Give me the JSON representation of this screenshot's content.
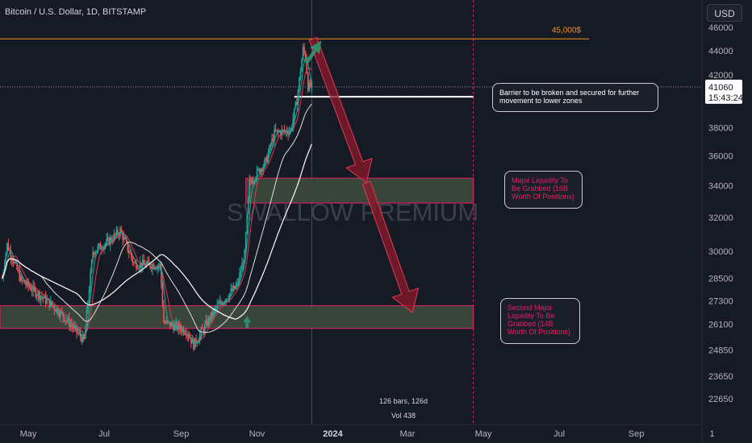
{
  "header": {
    "symbol_title": "Bitcoin / U.S. Dollar, 1D, BITSTAMP",
    "currency_button": "USD"
  },
  "watermark": "SWALLOW PREMIUM",
  "price_label": {
    "price": "41060",
    "countdown": "15:43:24"
  },
  "annotations": {
    "target_level": "45,000$",
    "barrier": "Barrier to be broken and secured for further movement to lower zones",
    "major_liquidity": "Major Liquidity To Be Grabbed (16B Worth Of Positions)",
    "second_liquidity": "Second Major Liquidity To Be Grabbed (14B Worth Of Positions)"
  },
  "stats": {
    "bars": "126 bars, 126d",
    "vol": "Vol 438"
  },
  "colors": {
    "background": "#161a25",
    "up_candle": "#26a69a",
    "down_candle": "#ef5350",
    "orange_line": "#f7931a",
    "zone_border": "#e91e63",
    "zone_fill": "#3d4a3d",
    "arrow_red": "#8b1a2b",
    "arrow_green": "#2e8b6e",
    "ma_fast": "#26a69a",
    "ma_mid": "#e53950",
    "ma_slow": "#ffffff"
  },
  "chart_data": {
    "type": "candlestick",
    "title": "Bitcoin / U.S. Dollar, 1D, BITSTAMP",
    "y_scale": "log",
    "ylim": [
      21800,
      47500
    ],
    "y_ticks": [
      46000,
      44000,
      42000,
      38000,
      36000,
      34000,
      32000,
      30000,
      28500,
      27300,
      26100,
      24850,
      23650,
      22650
    ],
    "x_ticks": [
      "May",
      "Jul",
      "Sep",
      "Nov",
      "2024",
      "Mar",
      "May",
      "Jul",
      "Sep",
      "1"
    ],
    "current_price": 41060,
    "levels": {
      "target": 45000,
      "barrier": 40300,
      "major_liquidity_zone": [
        32900,
        34500
      ],
      "second_liquidity_zone": [
        25900,
        27050
      ]
    },
    "projected_path": [
      45000,
      34200,
      26700
    ],
    "candles_sampled": [
      {
        "d": "2023-04-14",
        "o": 30400,
        "c": 30500,
        "h": 31000,
        "l": 29800
      },
      {
        "d": "2023-05-01",
        "o": 29200,
        "c": 28000,
        "h": 29300,
        "l": 27700
      },
      {
        "d": "2023-05-15",
        "o": 27000,
        "c": 27200,
        "h": 27700,
        "l": 26600
      },
      {
        "d": "2023-06-15",
        "o": 25500,
        "c": 25600,
        "h": 26000,
        "l": 24900
      },
      {
        "d": "2023-06-25",
        "o": 30500,
        "c": 30400,
        "h": 31300,
        "l": 30200
      },
      {
        "d": "2023-07-14",
        "o": 31000,
        "c": 30300,
        "h": 31800,
        "l": 30100
      },
      {
        "d": "2023-08-15",
        "o": 29300,
        "c": 29000,
        "h": 29500,
        "l": 28800
      },
      {
        "d": "2023-08-18",
        "o": 26600,
        "c": 26100,
        "h": 26800,
        "l": 25800
      },
      {
        "d": "2023-09-11",
        "o": 25800,
        "c": 25200,
        "h": 26000,
        "l": 24900
      },
      {
        "d": "2023-10-01",
        "o": 27000,
        "c": 27900,
        "h": 28100,
        "l": 26900
      },
      {
        "d": "2023-10-24",
        "o": 31000,
        "c": 33900,
        "h": 35000,
        "l": 30800
      },
      {
        "d": "2023-11-15",
        "o": 35500,
        "c": 37800,
        "h": 38000,
        "l": 35200
      },
      {
        "d": "2023-12-04",
        "o": 39900,
        "c": 41900,
        "h": 42300,
        "l": 39800
      },
      {
        "d": "2023-12-08",
        "o": 43000,
        "c": 44100,
        "h": 44700,
        "l": 42900
      },
      {
        "d": "2023-12-14",
        "o": 42800,
        "c": 41060,
        "h": 43400,
        "l": 40500
      }
    ]
  }
}
